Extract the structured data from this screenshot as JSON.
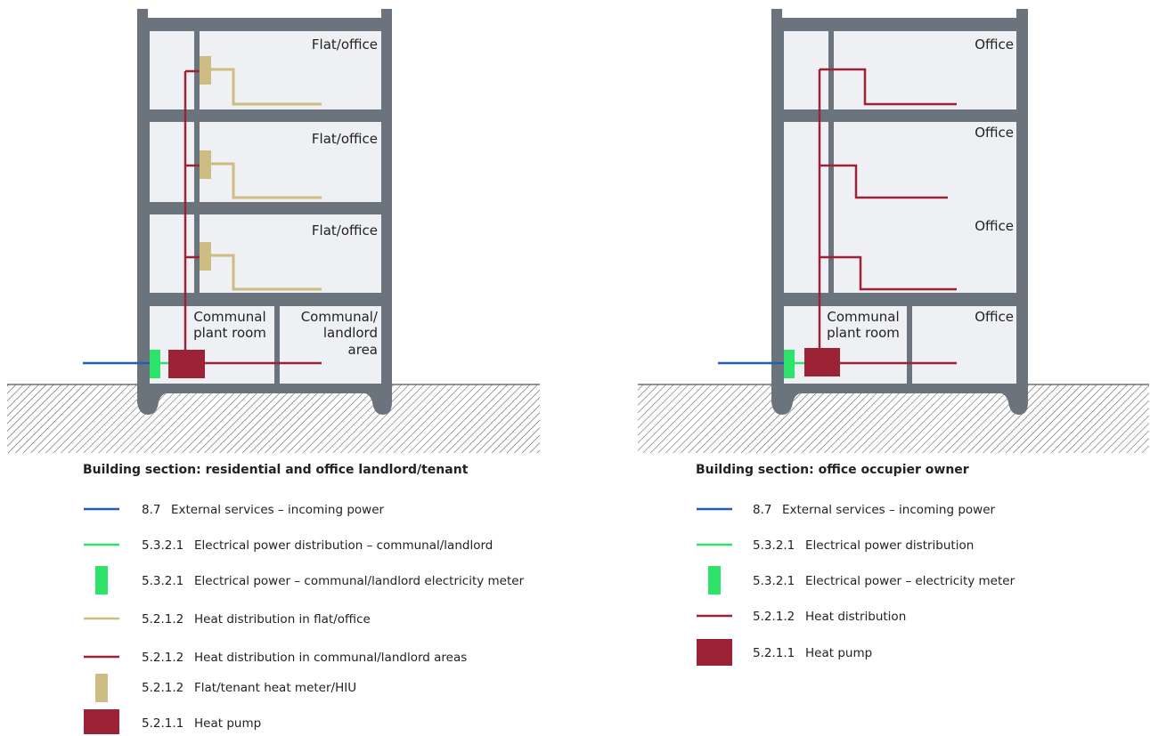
{
  "colors": {
    "wall": "#6b747c",
    "room": "#eef0f4",
    "external_power": "#1f5fb3",
    "electrical": "#2de36a",
    "heat_flat": "#cdbd82",
    "heat_communal": "#9b2335",
    "ground_hatch": "#555555"
  },
  "left": {
    "rooms": {
      "f3": "Flat/office",
      "f2": "Flat/office",
      "f1": "Flat/office",
      "plant_l1": "Communal",
      "plant_l2": "plant room",
      "landlord_l1": "Communal/",
      "landlord_l2": "landlord",
      "landlord_l3": "area"
    },
    "caption": "Building section: residential and office landlord/tenant",
    "legend": [
      {
        "code": "8.7",
        "text": "External services – incoming power",
        "symbol": "line",
        "color_key": "external_power"
      },
      {
        "code": "5.3.2.1",
        "text": "Electrical power distribution – communal/landlord",
        "symbol": "line",
        "color_key": "electrical"
      },
      {
        "code": "5.3.2.1",
        "text": "Electrical power – communal/landlord electricity meter",
        "symbol": "meter",
        "color_key": "electrical"
      },
      {
        "code": "5.2.1.2",
        "text": "Heat distribution in flat/office",
        "symbol": "line",
        "color_key": "heat_flat"
      },
      {
        "code": "5.2.1.2",
        "text": "Heat distribution in communal/landlord areas",
        "symbol": "line",
        "color_key": "heat_communal"
      },
      {
        "code": "5.2.1.2",
        "text": "Flat/tenant heat meter/HIU",
        "symbol": "meter",
        "color_key": "heat_flat"
      },
      {
        "code": "5.2.1.1",
        "text": "Heat pump",
        "symbol": "box",
        "color_key": "heat_communal"
      }
    ]
  },
  "right": {
    "rooms": {
      "f3": "Office",
      "f2a": "Office",
      "f2b": "Office",
      "plant_l1": "Communal",
      "plant_l2": "plant room",
      "ground_office": "Office"
    },
    "caption": "Building section: office occupier owner",
    "legend": [
      {
        "code": "8.7",
        "text": "External services – incoming power",
        "symbol": "line",
        "color_key": "external_power"
      },
      {
        "code": "5.3.2.1",
        "text": "Electrical power distribution",
        "symbol": "line",
        "color_key": "electrical"
      },
      {
        "code": "5.3.2.1",
        "text": "Electrical power – electricity meter",
        "symbol": "meter",
        "color_key": "electrical"
      },
      {
        "code": "5.2.1.2",
        "text": "Heat distribution",
        "symbol": "line",
        "color_key": "heat_communal"
      },
      {
        "code": "5.2.1.1",
        "text": "Heat pump",
        "symbol": "box",
        "color_key": "heat_communal"
      }
    ]
  }
}
